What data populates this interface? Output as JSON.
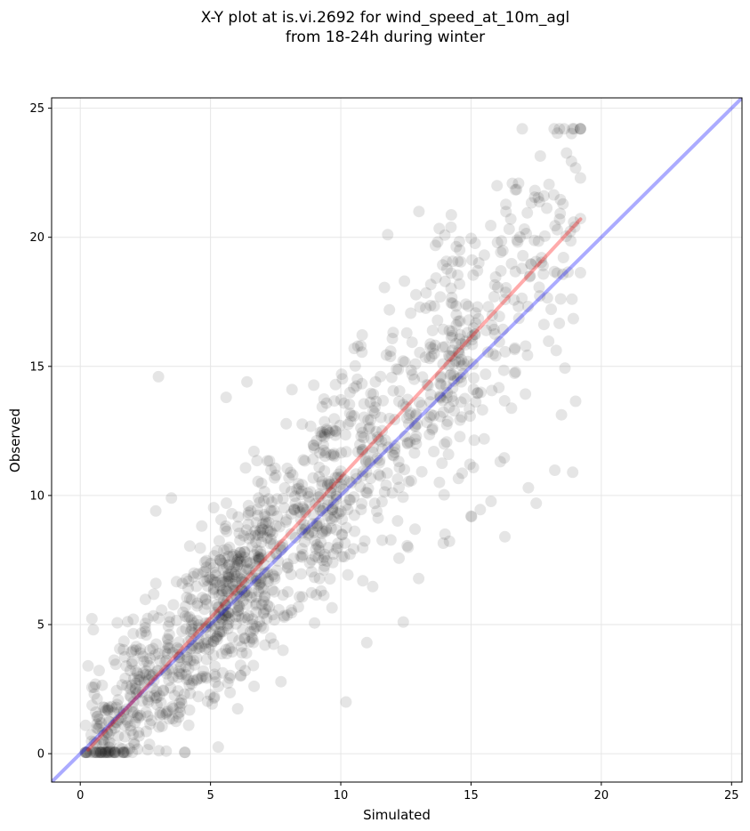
{
  "chart_data": {
    "type": "scatter",
    "title_lines": [
      "X-Y plot at is.vi.2692 for wind_speed_at_10m_agl",
      "from 18-24h during winter"
    ],
    "xlabel": "Simulated",
    "ylabel": "Observed",
    "xlim": [
      -1.1,
      25.4
    ],
    "ylim": [
      -1.1,
      25.4
    ],
    "xticks": [
      0,
      5,
      10,
      15,
      20,
      25
    ],
    "yticks": [
      0,
      5,
      10,
      15,
      20,
      25
    ],
    "grid": true,
    "point_color": "#000000",
    "point_opacity": 0.1,
    "point_count": 1400,
    "points_sample": [
      [
        3.0,
        14.6
      ],
      [
        19.2,
        24.2
      ],
      [
        19.2,
        22.3
      ],
      [
        16.0,
        22.0
      ],
      [
        17.8,
        21.6
      ],
      [
        13.0,
        21.0
      ],
      [
        11.8,
        20.1
      ],
      [
        18.4,
        20.7
      ],
      [
        18.9,
        10.9
      ],
      [
        16.3,
        8.4
      ],
      [
        14.0,
        8.5
      ],
      [
        15.0,
        9.2
      ],
      [
        17.5,
        9.7
      ],
      [
        17.2,
        10.3
      ],
      [
        12.4,
        5.1
      ],
      [
        11.0,
        4.3
      ],
      [
        10.2,
        2.0
      ],
      [
        3.3,
        0.1
      ],
      [
        1.9,
        0.2
      ],
      [
        0.5,
        4.8
      ],
      [
        0.3,
        3.4
      ],
      [
        3.5,
        9.9
      ],
      [
        2.9,
        9.4
      ],
      [
        5.6,
        13.8
      ],
      [
        6.4,
        14.4
      ]
    ],
    "reference_lines": [
      {
        "color": "#0000ff",
        "opacity": 0.33,
        "x": [
          -1.1,
          25.4
        ],
        "y": [
          -1.1,
          25.4
        ]
      },
      {
        "color": "#ff0000",
        "opacity": 0.33,
        "x": [
          0.3,
          19.2
        ],
        "y": [
          0.15,
          20.7
        ]
      }
    ]
  }
}
